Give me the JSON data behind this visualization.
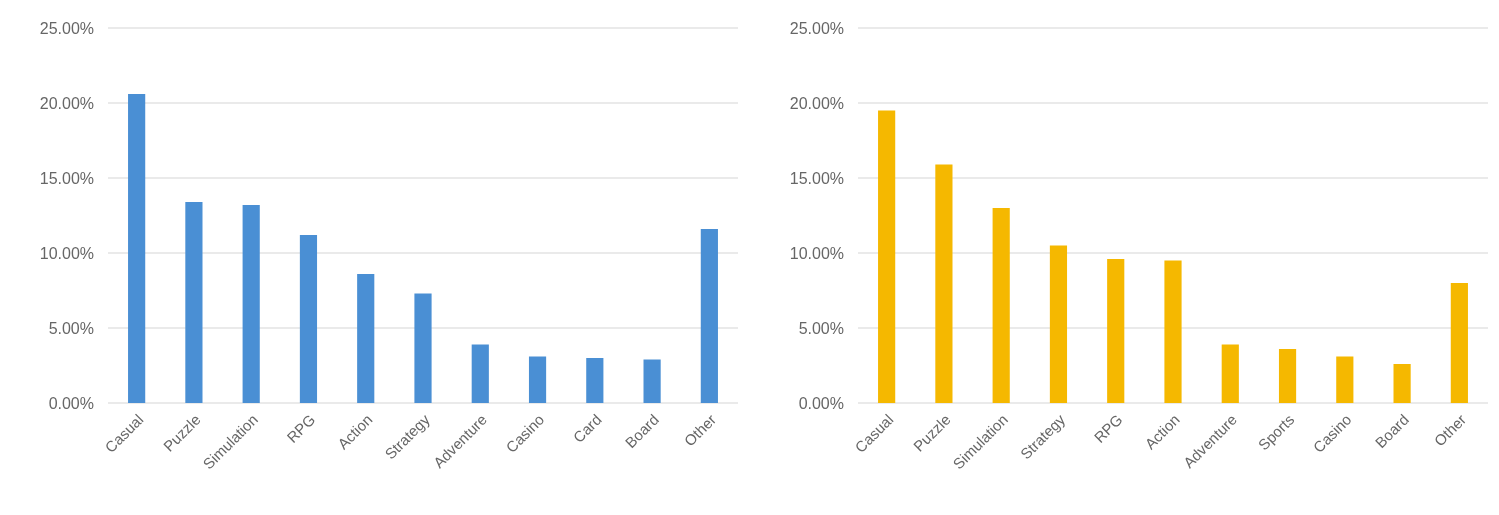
{
  "chart_data": [
    {
      "type": "bar",
      "categories": [
        "Casual",
        "Puzzle",
        "Simulation",
        "RPG",
        "Action",
        "Strategy",
        "Adventure",
        "Casino",
        "Card",
        "Board",
        "Other"
      ],
      "values": [
        20.6,
        13.4,
        13.2,
        11.2,
        8.6,
        7.3,
        3.9,
        3.1,
        3.0,
        2.9,
        11.6
      ],
      "color": "#4a8fd4",
      "ylim": [
        0,
        25
      ],
      "yticks": [
        {
          "value": 0,
          "label": "0.00%"
        },
        {
          "value": 5,
          "label": "5.00%"
        },
        {
          "value": 10,
          "label": "10.00%"
        },
        {
          "value": 15,
          "label": "15.00%"
        },
        {
          "value": 20,
          "label": "20.00%"
        },
        {
          "value": 25,
          "label": "25.00%"
        }
      ],
      "grid": "y"
    },
    {
      "type": "bar",
      "categories": [
        "Casual",
        "Puzzle",
        "Simulation",
        "Strategy",
        "RPG",
        "Action",
        "Adventure",
        "Sports",
        "Casino",
        "Board",
        "Other"
      ],
      "values": [
        19.5,
        15.9,
        13.0,
        10.5,
        9.6,
        9.5,
        3.9,
        3.6,
        3.1,
        2.6,
        8.0
      ],
      "color": "#f5b800",
      "ylim": [
        0,
        25
      ],
      "yticks": [
        {
          "value": 0,
          "label": "0.00%"
        },
        {
          "value": 5,
          "label": "5.00%"
        },
        {
          "value": 10,
          "label": "10.00%"
        },
        {
          "value": 15,
          "label": "15.00%"
        },
        {
          "value": 20,
          "label": "20.00%"
        },
        {
          "value": 25,
          "label": "25.00%"
        }
      ],
      "grid": "y"
    }
  ]
}
